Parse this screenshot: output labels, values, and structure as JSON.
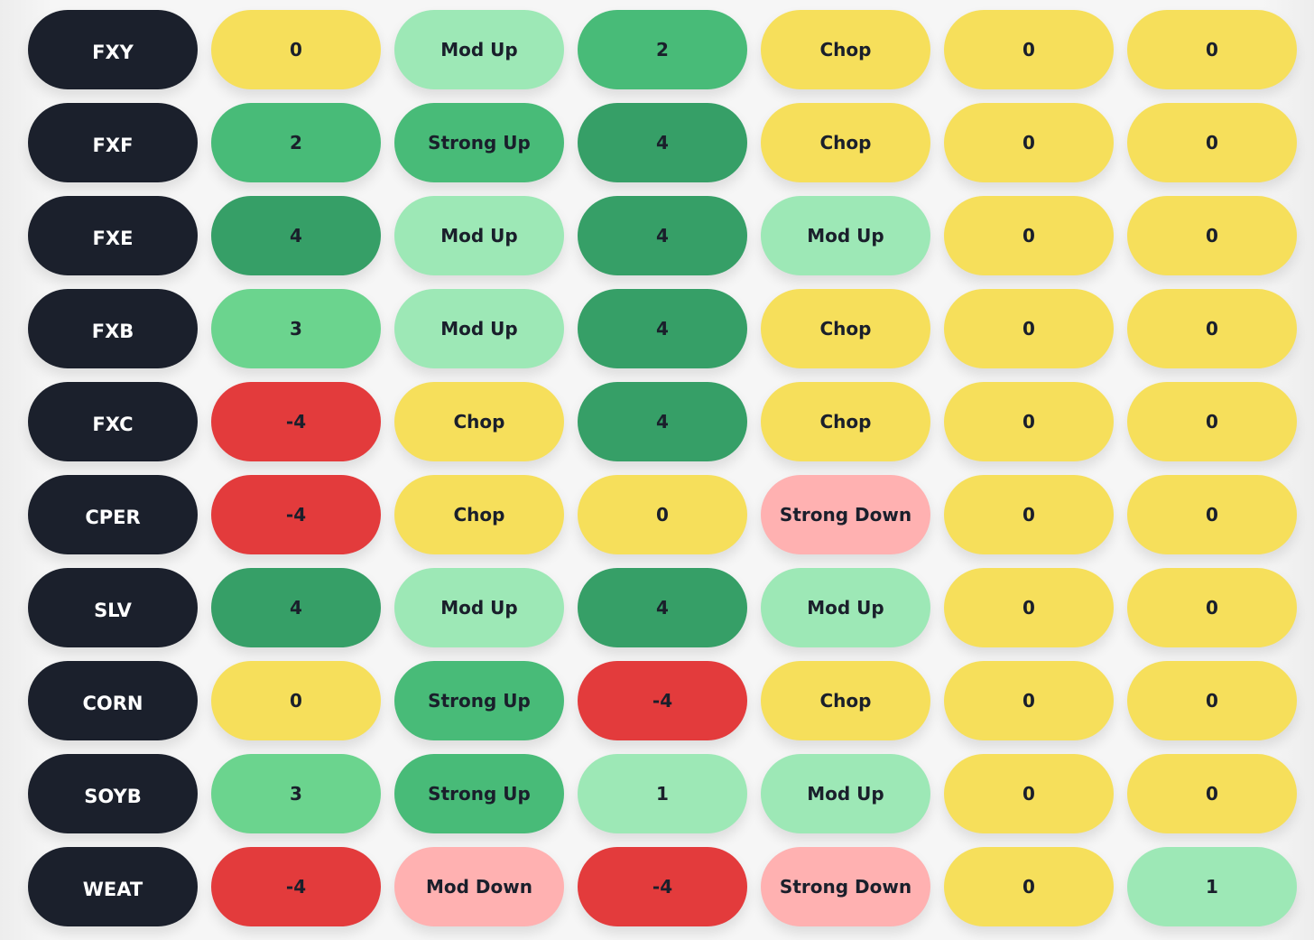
{
  "palette": {
    "ticker": "#1b202c",
    "yellow": "#f6df5b",
    "light_green": "#9de8b6",
    "mid_green": "#6bd48e",
    "green": "#48bb78",
    "dark_green": "#369f67",
    "red": "#e33b3c",
    "pink": "#ffb1b1"
  },
  "rows": [
    {
      "ticker": "FXY",
      "cells": [
        {
          "text": "0",
          "tone": "yellow"
        },
        {
          "text": "Mod Up",
          "tone": "light_green"
        },
        {
          "text": "2",
          "tone": "green"
        },
        {
          "text": "Chop",
          "tone": "yellow"
        },
        {
          "text": "0",
          "tone": "yellow"
        },
        {
          "text": "0",
          "tone": "yellow"
        }
      ]
    },
    {
      "ticker": "FXF",
      "cells": [
        {
          "text": "2",
          "tone": "green"
        },
        {
          "text": "Strong Up",
          "tone": "green"
        },
        {
          "text": "4",
          "tone": "dark_green"
        },
        {
          "text": "Chop",
          "tone": "yellow"
        },
        {
          "text": "0",
          "tone": "yellow"
        },
        {
          "text": "0",
          "tone": "yellow"
        }
      ]
    },
    {
      "ticker": "FXE",
      "cells": [
        {
          "text": "4",
          "tone": "dark_green"
        },
        {
          "text": "Mod Up",
          "tone": "light_green"
        },
        {
          "text": "4",
          "tone": "dark_green"
        },
        {
          "text": "Mod Up",
          "tone": "light_green"
        },
        {
          "text": "0",
          "tone": "yellow"
        },
        {
          "text": "0",
          "tone": "yellow"
        }
      ]
    },
    {
      "ticker": "FXB",
      "cells": [
        {
          "text": "3",
          "tone": "mid_green"
        },
        {
          "text": "Mod Up",
          "tone": "light_green"
        },
        {
          "text": "4",
          "tone": "dark_green"
        },
        {
          "text": "Chop",
          "tone": "yellow"
        },
        {
          "text": "0",
          "tone": "yellow"
        },
        {
          "text": "0",
          "tone": "yellow"
        }
      ]
    },
    {
      "ticker": "FXC",
      "cells": [
        {
          "text": "-4",
          "tone": "red"
        },
        {
          "text": "Chop",
          "tone": "yellow"
        },
        {
          "text": "4",
          "tone": "dark_green"
        },
        {
          "text": "Chop",
          "tone": "yellow"
        },
        {
          "text": "0",
          "tone": "yellow"
        },
        {
          "text": "0",
          "tone": "yellow"
        }
      ]
    },
    {
      "ticker": "CPER",
      "cells": [
        {
          "text": "-4",
          "tone": "red"
        },
        {
          "text": "Chop",
          "tone": "yellow"
        },
        {
          "text": "0",
          "tone": "yellow"
        },
        {
          "text": "Strong Down",
          "tone": "pink"
        },
        {
          "text": "0",
          "tone": "yellow"
        },
        {
          "text": "0",
          "tone": "yellow"
        }
      ]
    },
    {
      "ticker": "SLV",
      "cells": [
        {
          "text": "4",
          "tone": "dark_green"
        },
        {
          "text": "Mod Up",
          "tone": "light_green"
        },
        {
          "text": "4",
          "tone": "dark_green"
        },
        {
          "text": "Mod Up",
          "tone": "light_green"
        },
        {
          "text": "0",
          "tone": "yellow"
        },
        {
          "text": "0",
          "tone": "yellow"
        }
      ]
    },
    {
      "ticker": "CORN",
      "cells": [
        {
          "text": "0",
          "tone": "yellow"
        },
        {
          "text": "Strong Up",
          "tone": "green"
        },
        {
          "text": "-4",
          "tone": "red"
        },
        {
          "text": "Chop",
          "tone": "yellow"
        },
        {
          "text": "0",
          "tone": "yellow"
        },
        {
          "text": "0",
          "tone": "yellow"
        }
      ]
    },
    {
      "ticker": "SOYB",
      "cells": [
        {
          "text": "3",
          "tone": "mid_green"
        },
        {
          "text": "Strong Up",
          "tone": "green"
        },
        {
          "text": "1",
          "tone": "light_green"
        },
        {
          "text": "Mod Up",
          "tone": "light_green"
        },
        {
          "text": "0",
          "tone": "yellow"
        },
        {
          "text": "0",
          "tone": "yellow"
        }
      ]
    },
    {
      "ticker": "WEAT",
      "cells": [
        {
          "text": "-4",
          "tone": "red"
        },
        {
          "text": "Mod Down",
          "tone": "pink"
        },
        {
          "text": "-4",
          "tone": "red"
        },
        {
          "text": "Strong Down",
          "tone": "pink"
        },
        {
          "text": "0",
          "tone": "yellow"
        },
        {
          "text": "1",
          "tone": "light_green"
        }
      ]
    }
  ]
}
